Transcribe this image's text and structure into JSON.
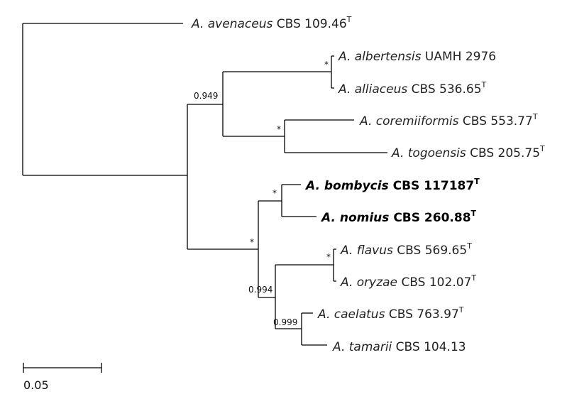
{
  "tree": {
    "tips": [
      {
        "id": "avenaceus",
        "genus": "A.",
        "species": "avenaceus",
        "strain": "CBS 109.46",
        "type_strain": true,
        "bold": false
      },
      {
        "id": "albertensis",
        "genus": "A.",
        "species": "albertensis",
        "strain": "UAMH 2976",
        "type_strain": false,
        "bold": false
      },
      {
        "id": "alliaceus",
        "genus": "A.",
        "species": "alliaceus",
        "strain": "CBS 536.65",
        "type_strain": true,
        "bold": false
      },
      {
        "id": "coremiiformis",
        "genus": "A.",
        "species": "coremiiformis",
        "strain": "CBS 553.77",
        "type_strain": true,
        "bold": false
      },
      {
        "id": "togoensis",
        "genus": "A.",
        "species": "togoensis",
        "strain": "CBS 205.75",
        "type_strain": true,
        "bold": false
      },
      {
        "id": "bombycis",
        "genus": "A.",
        "species": "bombycis",
        "strain": "CBS 117187",
        "type_strain": true,
        "bold": true
      },
      {
        "id": "nomius",
        "genus": "A.",
        "species": "nomius",
        "strain": "CBS 260.88",
        "type_strain": true,
        "bold": true
      },
      {
        "id": "flavus",
        "genus": "A.",
        "species": "flavus",
        "strain": "CBS 569.65",
        "type_strain": true,
        "bold": false
      },
      {
        "id": "oryzae",
        "genus": "A.",
        "species": "oryzae",
        "strain": "CBS 102.07",
        "type_strain": true,
        "bold": false
      },
      {
        "id": "caelatus",
        "genus": "A.",
        "species": "caelatus",
        "strain": "CBS 763.97",
        "type_strain": true,
        "bold": false
      },
      {
        "id": "tamarii",
        "genus": "A.",
        "species": "tamarii",
        "strain": "CBS 104.13",
        "type_strain": false,
        "bold": false
      }
    ],
    "type_marker": "T",
    "support_values": [
      {
        "node": "albertensis-alliaceus",
        "value": "*"
      },
      {
        "node": "coremiiformis-togoensis",
        "value": "*"
      },
      {
        "node": "alliaceus-clade",
        "value": "0.949"
      },
      {
        "node": "bombycis-nomius",
        "value": "*"
      },
      {
        "node": "flavus-clade",
        "value": "*"
      },
      {
        "node": "flavus-oryzae",
        "value": "*"
      },
      {
        "node": "flavus-tamarii",
        "value": "0.994"
      },
      {
        "node": "caelatus-tamarii",
        "value": "0.999"
      }
    ],
    "scale_bar": {
      "value": 0.05,
      "label": "0.05"
    }
  }
}
